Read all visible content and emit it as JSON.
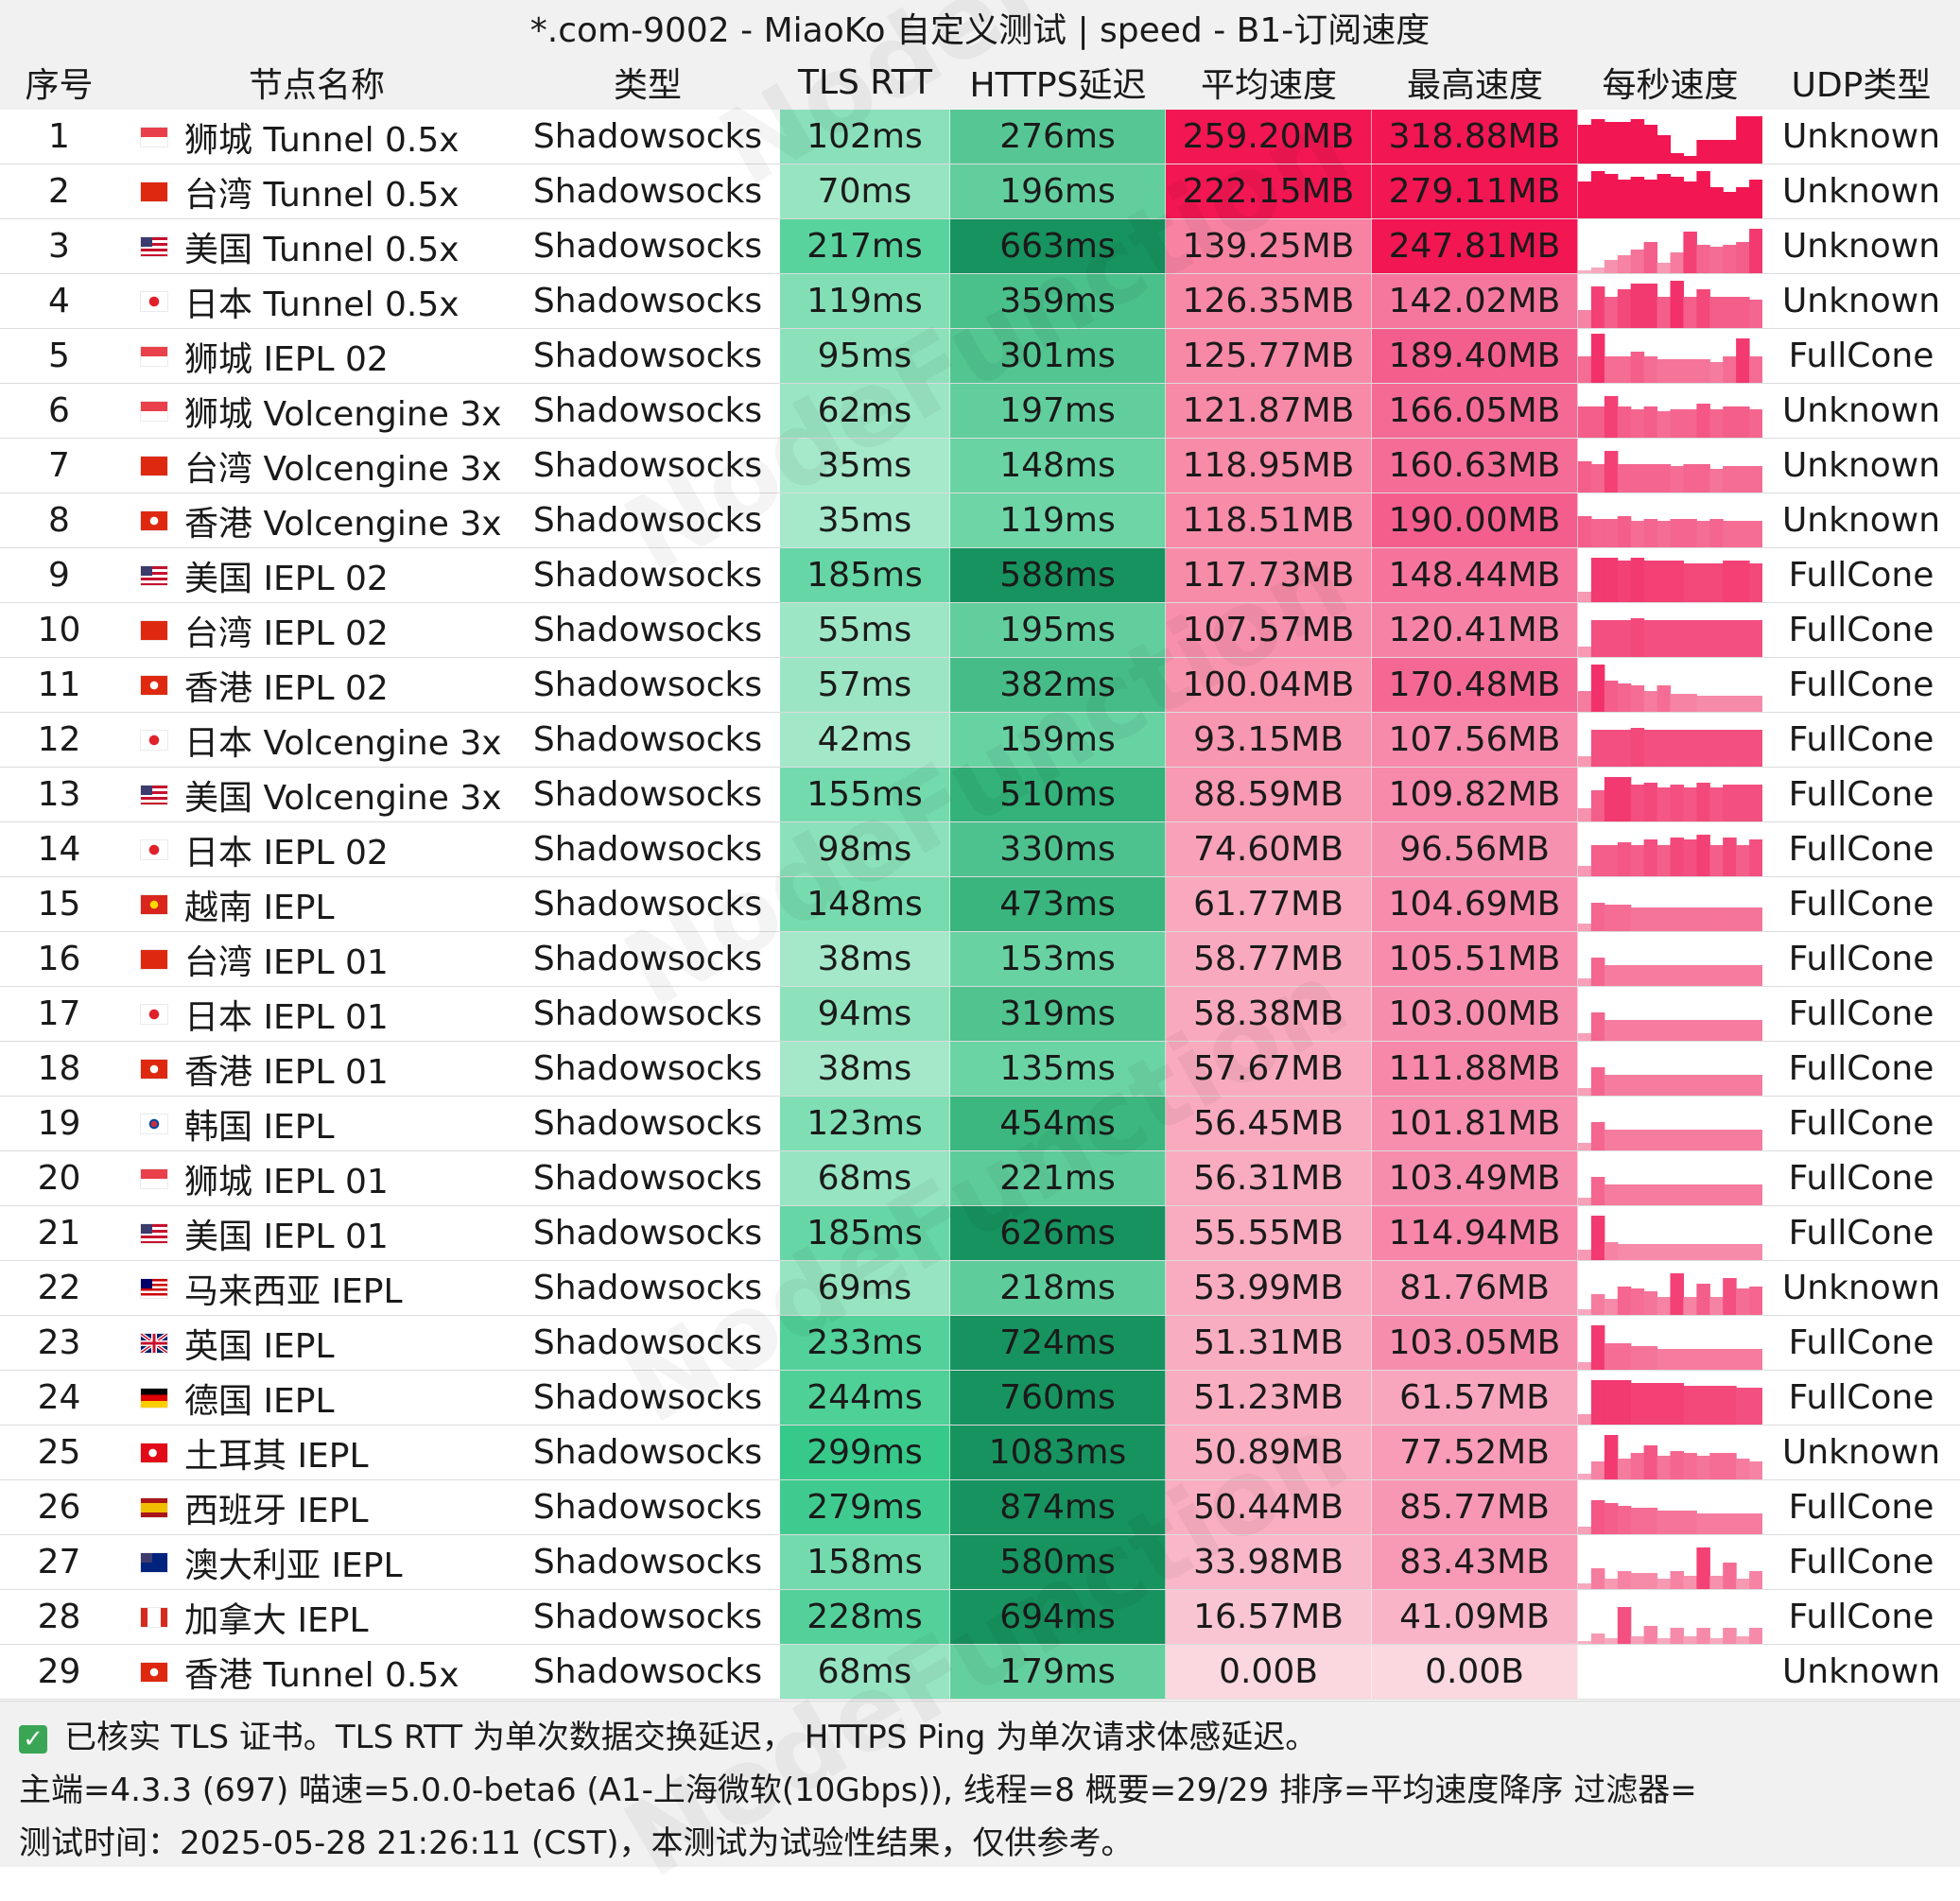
{
  "title": "*.com-9002 - MiaoKo 自定义测试 | speed - B1-订阅速度",
  "watermark": "NodeFunction",
  "columns": [
    "序号",
    "节点名称",
    "类型",
    "TLS RTT",
    "HTTPS延迟",
    "平均速度",
    "最高速度",
    "每秒速度",
    "UDP类型"
  ],
  "colors": {
    "header_bg": "#f1f1f1",
    "green_low": "#b4ecd2",
    "green_high": "#17935f",
    "red_low": "#fbd8e0",
    "red_high": "#f21652",
    "spark": "#f2306a"
  },
  "chart_data": {
    "type": "table",
    "title": "*.com-9002 - MiaoKo 自定义测试 | speed - B1-订阅速度",
    "rows": [
      {
        "idx": "1",
        "flag": "sg",
        "name": "狮城 Tunnel 0.5x",
        "type": "Shadowsocks",
        "tls": "102ms",
        "https": "276ms",
        "avg": "259.20MB",
        "max": "318.88MB",
        "udp": "Unknown",
        "avg_v": 259.2,
        "max_v": 318.88,
        "spark": [
          0.75,
          0.85,
          0.8,
          0.8,
          0.85,
          0.75,
          0.55,
          0.2,
          0.15,
          0.45,
          0.45,
          0.45,
          0.9,
          0.9
        ]
      },
      {
        "idx": "2",
        "flag": "cn",
        "name": "台湾 Tunnel 0.5x",
        "type": "Shadowsocks",
        "tls": "70ms",
        "https": "196ms",
        "avg": "222.15MB",
        "max": "279.11MB",
        "udp": "Unknown",
        "avg_v": 222.15,
        "max_v": 279.11,
        "spark": [
          0.7,
          0.9,
          0.85,
          0.75,
          0.8,
          0.75,
          0.85,
          0.8,
          0.7,
          0.9,
          0.6,
          0.5,
          0.6,
          0.75
        ]
      },
      {
        "idx": "3",
        "flag": "us",
        "name": "美国 Tunnel 0.5x",
        "type": "Shadowsocks",
        "tls": "217ms",
        "https": "663ms",
        "avg": "139.25MB",
        "max": "247.81MB",
        "udp": "Unknown",
        "avg_v": 139.25,
        "max_v": 247.81,
        "spark": [
          0.05,
          0.1,
          0.25,
          0.35,
          0.45,
          0.6,
          0.2,
          0.4,
          0.8,
          0.55,
          0.5,
          0.55,
          0.6,
          0.85
        ]
      },
      {
        "idx": "4",
        "flag": "jp",
        "name": "日本 Tunnel 0.5x",
        "type": "Shadowsocks",
        "tls": "119ms",
        "https": "359ms",
        "avg": "126.35MB",
        "max": "142.02MB",
        "udp": "Unknown",
        "avg_v": 126.35,
        "max_v": 142.02,
        "spark": [
          0.35,
          0.8,
          0.6,
          0.75,
          0.85,
          0.85,
          0.6,
          0.9,
          0.6,
          0.75,
          0.6,
          0.6,
          0.6,
          0.55
        ]
      },
      {
        "idx": "5",
        "flag": "sg",
        "name": "狮城 IEPL 02",
        "type": "Shadowsocks",
        "tls": "95ms",
        "https": "301ms",
        "avg": "125.77MB",
        "max": "189.40MB",
        "udp": "FullCone",
        "avg_v": 125.77,
        "max_v": 189.4,
        "spark": [
          0.5,
          0.95,
          0.5,
          0.5,
          0.6,
          0.5,
          0.45,
          0.45,
          0.45,
          0.45,
          0.4,
          0.5,
          0.85,
          0.5
        ]
      },
      {
        "idx": "6",
        "flag": "sg",
        "name": "狮城 Volcengine 3x",
        "type": "Shadowsocks",
        "tls": "62ms",
        "https": "197ms",
        "avg": "121.87MB",
        "max": "166.05MB",
        "udp": "Unknown",
        "avg_v": 121.87,
        "max_v": 166.05,
        "spark": [
          0.6,
          0.6,
          0.8,
          0.6,
          0.55,
          0.6,
          0.5,
          0.55,
          0.55,
          0.65,
          0.55,
          0.6,
          0.6,
          0.55
        ]
      },
      {
        "idx": "7",
        "flag": "cn",
        "name": "台湾 Volcengine 3x",
        "type": "Shadowsocks",
        "tls": "35ms",
        "https": "148ms",
        "avg": "118.95MB",
        "max": "160.63MB",
        "udp": "Unknown",
        "avg_v": 118.95,
        "max_v": 160.63,
        "spark": [
          0.6,
          0.55,
          0.8,
          0.55,
          0.55,
          0.55,
          0.55,
          0.5,
          0.55,
          0.55,
          0.45,
          0.5,
          0.5,
          0.5
        ]
      },
      {
        "idx": "8",
        "flag": "hk",
        "name": "香港 Volcengine 3x",
        "type": "Shadowsocks",
        "tls": "35ms",
        "https": "119ms",
        "avg": "118.51MB",
        "max": "190.00MB",
        "udp": "Unknown",
        "avg_v": 118.51,
        "max_v": 190.0,
        "spark": [
          0.6,
          0.55,
          0.55,
          0.6,
          0.5,
          0.55,
          0.5,
          0.55,
          0.55,
          0.5,
          0.55,
          0.5,
          0.5,
          0.5
        ]
      },
      {
        "idx": "9",
        "flag": "us",
        "name": "美国 IEPL 02",
        "type": "Shadowsocks",
        "tls": "185ms",
        "https": "588ms",
        "avg": "117.73MB",
        "max": "148.44MB",
        "udp": "FullCone",
        "avg_v": 117.73,
        "max_v": 148.44,
        "spark": [
          0.2,
          0.85,
          0.85,
          0.8,
          0.85,
          0.8,
          0.8,
          0.8,
          0.75,
          0.75,
          0.75,
          0.8,
          0.8,
          0.75
        ]
      },
      {
        "idx": "10",
        "flag": "cn",
        "name": "台湾 IEPL 02",
        "type": "Shadowsocks",
        "tls": "55ms",
        "https": "195ms",
        "avg": "107.57MB",
        "max": "120.41MB",
        "udp": "FullCone",
        "avg_v": 107.57,
        "max_v": 120.41,
        "spark": [
          0.2,
          0.7,
          0.7,
          0.7,
          0.75,
          0.7,
          0.7,
          0.7,
          0.7,
          0.7,
          0.7,
          0.7,
          0.7,
          0.7
        ]
      },
      {
        "idx": "11",
        "flag": "hk",
        "name": "香港 IEPL 02",
        "type": "Shadowsocks",
        "tls": "57ms",
        "https": "382ms",
        "avg": "100.04MB",
        "max": "170.48MB",
        "udp": "FullCone",
        "avg_v": 100.04,
        "max_v": 170.48,
        "spark": [
          0.4,
          0.9,
          0.6,
          0.55,
          0.5,
          0.4,
          0.5,
          0.35,
          0.35,
          0.3,
          0.3,
          0.3,
          0.3,
          0.3
        ]
      },
      {
        "idx": "12",
        "flag": "jp",
        "name": "日本 Volcengine 3x",
        "type": "Shadowsocks",
        "tls": "42ms",
        "https": "159ms",
        "avg": "93.15MB",
        "max": "107.56MB",
        "udp": "FullCone",
        "avg_v": 93.15,
        "max_v": 107.56,
        "spark": [
          0.2,
          0.7,
          0.7,
          0.7,
          0.75,
          0.7,
          0.7,
          0.7,
          0.7,
          0.7,
          0.7,
          0.7,
          0.7,
          0.7
        ]
      },
      {
        "idx": "13",
        "flag": "us",
        "name": "美国 Volcengine 3x",
        "type": "Shadowsocks",
        "tls": "155ms",
        "https": "510ms",
        "avg": "88.59MB",
        "max": "109.82MB",
        "udp": "FullCone",
        "avg_v": 88.59,
        "max_v": 109.82,
        "spark": [
          0.25,
          0.6,
          0.85,
          0.85,
          0.7,
          0.75,
          0.65,
          0.7,
          0.65,
          0.75,
          0.65,
          0.7,
          0.7,
          0.7
        ]
      },
      {
        "idx": "14",
        "flag": "jp",
        "name": "日本 IEPL 02",
        "type": "Shadowsocks",
        "tls": "98ms",
        "https": "330ms",
        "avg": "74.60MB",
        "max": "96.56MB",
        "udp": "FullCone",
        "avg_v": 74.6,
        "max_v": 96.56,
        "spark": [
          0.2,
          0.6,
          0.6,
          0.65,
          0.6,
          0.7,
          0.6,
          0.75,
          0.7,
          0.8,
          0.6,
          0.75,
          0.6,
          0.7
        ]
      },
      {
        "idx": "15",
        "flag": "vn",
        "name": "越南 IEPL",
        "type": "Shadowsocks",
        "tls": "148ms",
        "https": "473ms",
        "avg": "61.77MB",
        "max": "104.69MB",
        "udp": "FullCone",
        "avg_v": 61.77,
        "max_v": 104.69,
        "spark": [
          0.15,
          0.55,
          0.5,
          0.5,
          0.45,
          0.45,
          0.45,
          0.45,
          0.45,
          0.45,
          0.45,
          0.45,
          0.45,
          0.45
        ]
      },
      {
        "idx": "16",
        "flag": "cn",
        "name": "台湾 IEPL 01",
        "type": "Shadowsocks",
        "tls": "38ms",
        "https": "153ms",
        "avg": "58.77MB",
        "max": "105.51MB",
        "udp": "FullCone",
        "avg_v": 58.77,
        "max_v": 105.51,
        "spark": [
          0.15,
          0.55,
          0.4,
          0.4,
          0.4,
          0.4,
          0.4,
          0.4,
          0.4,
          0.4,
          0.4,
          0.4,
          0.4,
          0.4
        ]
      },
      {
        "idx": "17",
        "flag": "jp",
        "name": "日本 IEPL 01",
        "type": "Shadowsocks",
        "tls": "94ms",
        "https": "319ms",
        "avg": "58.38MB",
        "max": "103.00MB",
        "udp": "FullCone",
        "avg_v": 58.38,
        "max_v": 103.0,
        "spark": [
          0.15,
          0.55,
          0.4,
          0.4,
          0.4,
          0.4,
          0.4,
          0.4,
          0.4,
          0.4,
          0.4,
          0.4,
          0.4,
          0.4
        ]
      },
      {
        "idx": "18",
        "flag": "hk",
        "name": "香港 IEPL 01",
        "type": "Shadowsocks",
        "tls": "38ms",
        "https": "135ms",
        "avg": "57.67MB",
        "max": "111.88MB",
        "udp": "FullCone",
        "avg_v": 57.67,
        "max_v": 111.88,
        "spark": [
          0.15,
          0.55,
          0.4,
          0.4,
          0.4,
          0.4,
          0.4,
          0.4,
          0.4,
          0.4,
          0.4,
          0.4,
          0.4,
          0.4
        ]
      },
      {
        "idx": "19",
        "flag": "kr",
        "name": "韩国 IEPL",
        "type": "Shadowsocks",
        "tls": "123ms",
        "https": "454ms",
        "avg": "56.45MB",
        "max": "101.81MB",
        "udp": "FullCone",
        "avg_v": 56.45,
        "max_v": 101.81,
        "spark": [
          0.15,
          0.55,
          0.4,
          0.4,
          0.4,
          0.4,
          0.4,
          0.4,
          0.4,
          0.4,
          0.4,
          0.4,
          0.4,
          0.4
        ]
      },
      {
        "idx": "20",
        "flag": "sg",
        "name": "狮城 IEPL 01",
        "type": "Shadowsocks",
        "tls": "68ms",
        "https": "221ms",
        "avg": "56.31MB",
        "max": "103.49MB",
        "udp": "FullCone",
        "avg_v": 56.31,
        "max_v": 103.49,
        "spark": [
          0.15,
          0.55,
          0.4,
          0.4,
          0.4,
          0.4,
          0.4,
          0.4,
          0.4,
          0.4,
          0.4,
          0.4,
          0.4,
          0.4
        ]
      },
      {
        "idx": "21",
        "flag": "us",
        "name": "美国 IEPL 01",
        "type": "Shadowsocks",
        "tls": "185ms",
        "https": "626ms",
        "avg": "55.55MB",
        "max": "114.94MB",
        "udp": "FullCone",
        "avg_v": 55.55,
        "max_v": 114.94,
        "spark": [
          0.2,
          0.85,
          0.35,
          0.3,
          0.3,
          0.3,
          0.3,
          0.3,
          0.3,
          0.3,
          0.3,
          0.3,
          0.3,
          0.3
        ]
      },
      {
        "idx": "22",
        "flag": "my",
        "name": "马来西亚 IEPL",
        "type": "Shadowsocks",
        "tls": "69ms",
        "https": "218ms",
        "avg": "53.99MB",
        "max": "81.76MB",
        "udp": "Unknown",
        "avg_v": 53.99,
        "max_v": 81.76,
        "spark": [
          0.1,
          0.4,
          0.3,
          0.55,
          0.5,
          0.45,
          0.35,
          0.8,
          0.35,
          0.6,
          0.35,
          0.7,
          0.5,
          0.55
        ]
      },
      {
        "idx": "23",
        "flag": "gb",
        "name": "英国 IEPL",
        "type": "Shadowsocks",
        "tls": "233ms",
        "https": "724ms",
        "avg": "51.31MB",
        "max": "103.05MB",
        "udp": "FullCone",
        "avg_v": 51.31,
        "max_v": 103.05,
        "spark": [
          0.15,
          0.85,
          0.5,
          0.5,
          0.45,
          0.45,
          0.4,
          0.4,
          0.4,
          0.4,
          0.4,
          0.4,
          0.4,
          0.4
        ]
      },
      {
        "idx": "24",
        "flag": "de",
        "name": "德国 IEPL",
        "type": "Shadowsocks",
        "tls": "244ms",
        "https": "760ms",
        "avg": "51.23MB",
        "max": "61.57MB",
        "udp": "FullCone",
        "avg_v": 51.23,
        "max_v": 61.57,
        "spark": [
          0.2,
          0.85,
          0.85,
          0.85,
          0.8,
          0.8,
          0.8,
          0.8,
          0.75,
          0.75,
          0.75,
          0.75,
          0.7,
          0.7
        ]
      },
      {
        "idx": "25",
        "flag": "tr",
        "name": "土耳其 IEPL",
        "type": "Shadowsocks",
        "tls": "299ms",
        "https": "1083ms",
        "avg": "50.89MB",
        "max": "77.52MB",
        "udp": "Unknown",
        "avg_v": 50.89,
        "max_v": 77.52,
        "spark": [
          0.1,
          0.35,
          0.85,
          0.4,
          0.5,
          0.65,
          0.45,
          0.55,
          0.5,
          0.45,
          0.5,
          0.5,
          0.4,
          0.35
        ]
      },
      {
        "idx": "26",
        "flag": "es",
        "name": "西班牙 IEPL",
        "type": "Shadowsocks",
        "tls": "279ms",
        "https": "874ms",
        "avg": "50.44MB",
        "max": "85.77MB",
        "udp": "FullCone",
        "avg_v": 50.44,
        "max_v": 85.77,
        "spark": [
          0.15,
          0.65,
          0.6,
          0.55,
          0.5,
          0.5,
          0.45,
          0.45,
          0.45,
          0.4,
          0.4,
          0.4,
          0.4,
          0.4
        ]
      },
      {
        "idx": "27",
        "flag": "au",
        "name": "澳大利亚 IEPL",
        "type": "Shadowsocks",
        "tls": "158ms",
        "https": "580ms",
        "avg": "33.98MB",
        "max": "83.43MB",
        "udp": "FullCone",
        "avg_v": 33.98,
        "max_v": 83.43,
        "spark": [
          0.1,
          0.4,
          0.2,
          0.35,
          0.3,
          0.3,
          0.2,
          0.35,
          0.25,
          0.8,
          0.25,
          0.5,
          0.2,
          0.35
        ]
      },
      {
        "idx": "28",
        "flag": "ca",
        "name": "加拿大 IEPL",
        "type": "Shadowsocks",
        "tls": "228ms",
        "https": "694ms",
        "avg": "16.57MB",
        "max": "41.09MB",
        "udp": "FullCone",
        "avg_v": 16.57,
        "max_v": 41.09,
        "spark": [
          0.05,
          0.2,
          0.1,
          0.7,
          0.15,
          0.35,
          0.1,
          0.3,
          0.15,
          0.3,
          0.1,
          0.3,
          0.15,
          0.3
        ]
      },
      {
        "idx": "29",
        "flag": "hk",
        "name": "香港 Tunnel 0.5x",
        "type": "Shadowsocks",
        "tls": "68ms",
        "https": "179ms",
        "avg": "0.00B",
        "max": "0.00B",
        "udp": "Unknown",
        "avg_v": 0,
        "max_v": 0,
        "spark": []
      }
    ]
  },
  "footer": {
    "line1": "已核实 TLS 证书。TLS RTT 为单次数据交换延迟， HTTPS Ping 为单次请求体感延迟。",
    "line2": "主端=4.3.3 (697) 喵速=5.0.0-beta6 (A1-上海微软(10Gbps)), 线程=8 概要=29/29 排序=平均速度降序 过滤器=",
    "line3": "测试时间：2025-05-28 21:26:11 (CST)，本测试为试验性结果，仅供参考。"
  }
}
